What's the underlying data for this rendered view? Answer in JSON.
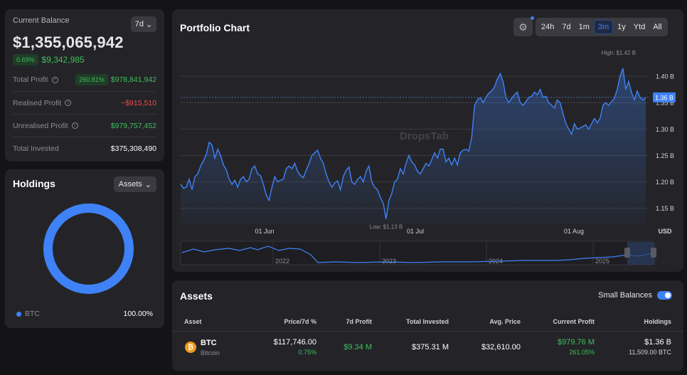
{
  "balance": {
    "label": "Current Balance",
    "period": "7d",
    "value": "$1,355,065,942",
    "change_pct": "0.69%",
    "change_amt": "$9,342,985",
    "stats": [
      {
        "label": "Total Profit",
        "pill": "260.81%",
        "value": "$978,841,942",
        "color": "green",
        "info": true
      },
      {
        "label": "Realised Profit",
        "pill": "",
        "value": "−$915,510",
        "color": "red",
        "info": true
      },
      {
        "label": "Unrealised Profit",
        "pill": "",
        "value": "$979,757,452",
        "color": "green",
        "info": true
      },
      {
        "label": "Total Invested",
        "pill": "",
        "value": "$375,308,490",
        "color": "white",
        "info": false
      }
    ]
  },
  "holdings": {
    "title": "Holdings",
    "filter": "Assets",
    "legend": [
      {
        "name": "BTC",
        "pct": "100.00%",
        "color": "#3f82f7"
      }
    ]
  },
  "portfolio_chart": {
    "title": "Portfolio Chart",
    "ranges": [
      "24h",
      "7d",
      "1m",
      "3m",
      "1y",
      "Ytd",
      "All"
    ],
    "active_range": "3m",
    "watermark": "DropsTab",
    "high_label": "High: $1.42 B",
    "low_label": "Low: $1.13 B",
    "current_label": "1.36 B",
    "currency": "USD",
    "nav_labels": [
      "2022",
      "2023",
      "2024",
      "2025"
    ]
  },
  "chart_data": {
    "type": "line",
    "title": "Portfolio Chart",
    "xlabel": "",
    "ylabel": "USD",
    "x_ticks": [
      "01 Jun",
      "01 Jul",
      "01 Aug"
    ],
    "y_ticks": [
      "1.15 B",
      "1.20 B",
      "1.25 B",
      "1.30 B",
      "1.35 B",
      "1.40 B"
    ],
    "y_tick_values": [
      1.15,
      1.2,
      1.25,
      1.3,
      1.35,
      1.4
    ],
    "ylim": [
      1.12,
      1.45
    ],
    "grid": true,
    "series": [
      {
        "values": [
          1.196,
          1.188,
          1.19,
          1.205,
          1.185,
          1.21,
          1.215,
          1.23,
          1.24,
          1.252,
          1.275,
          1.27,
          1.245,
          1.262,
          1.25,
          1.232,
          1.223,
          1.205,
          1.195,
          1.203,
          1.19,
          1.205,
          1.21,
          1.2,
          1.205,
          1.225,
          1.23,
          1.215,
          1.212,
          1.195,
          1.175,
          1.165,
          1.19,
          1.21,
          1.2,
          1.203,
          1.205,
          1.225,
          1.23,
          1.225,
          1.235,
          1.22,
          1.212,
          1.208,
          1.222,
          1.235,
          1.25,
          1.255,
          1.26,
          1.245,
          1.235,
          1.215,
          1.2,
          1.19,
          1.198,
          1.202,
          1.185,
          1.21,
          1.222,
          1.228,
          1.2,
          1.195,
          1.205,
          1.21,
          1.2,
          1.22,
          1.23,
          1.2,
          1.19,
          1.185,
          1.17,
          1.16,
          1.13,
          1.165,
          1.178,
          1.2,
          1.205,
          1.225,
          1.215,
          1.235,
          1.25,
          1.238,
          1.232,
          1.22,
          1.215,
          1.225,
          1.235,
          1.23,
          1.242,
          1.255,
          1.245,
          1.262,
          1.262,
          1.238,
          1.245,
          1.232,
          1.245,
          1.232,
          1.255,
          1.26,
          1.262,
          1.258,
          1.285,
          1.345,
          1.355,
          1.36,
          1.35,
          1.36,
          1.368,
          1.372,
          1.38,
          1.395,
          1.405,
          1.39,
          1.36,
          1.35,
          1.358,
          1.365,
          1.37,
          1.35,
          1.345,
          1.352,
          1.36,
          1.362,
          1.37,
          1.365,
          1.375,
          1.36,
          1.362,
          1.35,
          1.345,
          1.34,
          1.355,
          1.35,
          1.33,
          1.31,
          1.3,
          1.29,
          1.31,
          1.3,
          1.302,
          1.305,
          1.308,
          1.3,
          1.31,
          1.32,
          1.312,
          1.32,
          1.345,
          1.35,
          1.345,
          1.352,
          1.358,
          1.375,
          1.4,
          1.415,
          1.375,
          1.39,
          1.37,
          1.355,
          1.372,
          1.36,
          1.355,
          1.36
        ]
      }
    ]
  },
  "assets": {
    "title": "Assets",
    "small_balances_label": "Small Balances",
    "columns": [
      "Asset",
      "Price/7d %",
      "7d Profit",
      "Total Invested",
      "Avg. Price",
      "Current Profit",
      "Holdings"
    ],
    "rows": [
      {
        "symbol": "BTC",
        "name": "Bitcoin",
        "icon": "bitcoin-icon",
        "price": "$117,746.00",
        "price_change": "0.75%",
        "profit_7d": "$9.34 M",
        "total_invested": "$375.31 M",
        "avg_price": "$32,610.00",
        "current_profit": "$979.76 M",
        "current_profit_pct": "261.05%",
        "holdings_value": "$1.36 B",
        "holdings_amount": "11,509.00 BTC"
      }
    ]
  }
}
